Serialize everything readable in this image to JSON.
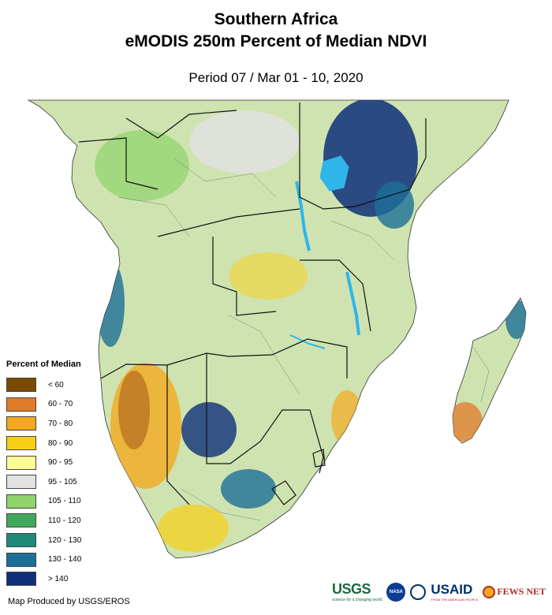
{
  "title": {
    "line1": "Southern Africa",
    "line2": "eMODIS 250m Percent of Median NDVI"
  },
  "subtitle": "Period 07 / Mar 01 - 10, 2020",
  "legend": {
    "title": "Percent of Median",
    "items": [
      {
        "label": "< 60",
        "color": "#7a4a00"
      },
      {
        "label": "60 - 70",
        "color": "#e07b2a"
      },
      {
        "label": "70 - 80",
        "color": "#f2a91f"
      },
      {
        "label": "80 - 90",
        "color": "#f7cf15"
      },
      {
        "label": "90 - 95",
        "color": "#fdfd96"
      },
      {
        "label": "95 - 105",
        "color": "#e2e2e2"
      },
      {
        "label": "105 - 110",
        "color": "#8fd36b"
      },
      {
        "label": "110 - 120",
        "color": "#3fa85a"
      },
      {
        "label": "120 - 130",
        "color": "#1f8a7a"
      },
      {
        "label": "130 - 140",
        "color": "#1d6f97"
      },
      {
        "label": "> 140",
        "color": "#0e2f7a"
      }
    ]
  },
  "credit": "Map Produced by USGS/EROS",
  "logos": {
    "usgs": "USGS",
    "usgs_tagline": "science for a changing world",
    "nasa": "NASA",
    "usaid": "USAID",
    "usaid_tagline": "FROM THE AMERICAN PEOPLE",
    "fews": "FEWS NET"
  },
  "colors": {
    "water": "#2fb5ea",
    "border": "#111111"
  }
}
